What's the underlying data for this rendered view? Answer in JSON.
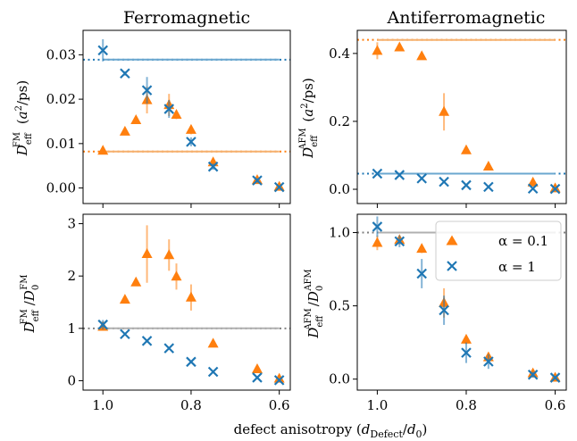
{
  "colors": {
    "orange": "#ff7f0e",
    "blue": "#1f77b4",
    "orange_fit": "#f5b06e",
    "blue_fit": "#6ba7cf",
    "gray_fit": "#b0b0b0",
    "gray_ref": "#808080"
  },
  "legend": {
    "alpha01": "α = 0.1",
    "alpha1": "α = 1"
  },
  "xlabel_shared": "defect anisotropy (d_Defect/d_0)",
  "chart_data": [
    {
      "type": "scatter",
      "title": "Ferromagnetic",
      "ylabel": "D_eff^FM (a²/ps)",
      "xlim": [
        1.045,
        0.575
      ],
      "ylim": [
        -0.0035,
        0.0355
      ],
      "xticks": [
        1.0,
        0.8,
        0.6
      ],
      "xtick_labels": [
        "1.0",
        "0.8",
        "0.6"
      ],
      "show_xtick_labels": false,
      "yticks": [
        0.0,
        0.01,
        0.02,
        0.03
      ],
      "ytick_labels": [
        "0.00",
        "0.01",
        "0.02",
        "0.03"
      ],
      "ref_lines": [
        {
          "y": 0.0289,
          "color": "blue"
        },
        {
          "y": 0.0082,
          "color": "orange"
        }
      ],
      "series": [
        {
          "name": "α = 0.1",
          "marker": "triangle",
          "color": "orange",
          "x": [
            1.0,
            0.95,
            0.925,
            0.9,
            0.85,
            0.8333,
            0.8,
            0.75,
            0.65,
            0.6
          ],
          "y": [
            0.0084,
            0.0127,
            0.0153,
            0.0198,
            0.0187,
            0.0165,
            0.0131,
            0.0058,
            0.0018,
            0.0003
          ],
          "err": [
            0.0003,
            0.0005,
            0.0005,
            0.003,
            0.0025,
            0.001,
            0.001,
            0.0005,
            0.0004,
            0.0002
          ]
        },
        {
          "name": "α = 1",
          "marker": "x",
          "color": "blue",
          "x": [
            1.0,
            0.95,
            0.9,
            0.85,
            0.8,
            0.75,
            0.65,
            0.6
          ],
          "y": [
            0.031,
            0.0258,
            0.022,
            0.0178,
            0.0104,
            0.0048,
            0.0017,
            0.0002
          ],
          "err": [
            0.0025,
            0.0005,
            0.003,
            0.002,
            0.001,
            0.0007,
            0.0005,
            0.0002
          ]
        }
      ],
      "fits": [
        {
          "color": "blue_fit",
          "top": 0.0289,
          "mid": 0.79,
          "width": 0.07
        },
        {
          "color": "orange_fit",
          "top": 0.0082,
          "mid": 0.79,
          "width": 0.07
        }
      ]
    },
    {
      "type": "scatter",
      "title": "Antiferromagnetic",
      "ylabel": "D_eff^AFM (a²/ps)",
      "xlim": [
        1.045,
        0.575
      ],
      "ylim": [
        -0.042,
        0.468
      ],
      "xticks": [
        1.0,
        0.8,
        0.6
      ],
      "xtick_labels": [
        "1.0",
        "0.8",
        "0.6"
      ],
      "show_xtick_labels": false,
      "yticks": [
        0.0,
        0.2,
        0.4
      ],
      "ytick_labels": [
        "0.0",
        "0.2",
        "0.4"
      ],
      "ref_lines": [
        {
          "y": 0.44,
          "color": "orange"
        },
        {
          "y": 0.046,
          "color": "blue"
        }
      ],
      "series": [
        {
          "name": "α = 0.1",
          "marker": "triangle",
          "color": "orange",
          "x": [
            1.0,
            0.95,
            0.9,
            0.85,
            0.8,
            0.75,
            0.65,
            0.6
          ],
          "y": [
            0.408,
            0.418,
            0.392,
            0.228,
            0.115,
            0.067,
            0.02,
            0.003
          ],
          "err": [
            0.025,
            0.01,
            0.01,
            0.055,
            0.01,
            0.008,
            0.005,
            0.003
          ]
        },
        {
          "name": "α = 1",
          "marker": "x",
          "color": "blue",
          "x": [
            1.0,
            0.95,
            0.9,
            0.85,
            0.8,
            0.75,
            0.65,
            0.6
          ],
          "y": [
            0.046,
            0.042,
            0.032,
            0.022,
            0.012,
            0.007,
            0.002,
            0.001
          ],
          "err": [
            0.004,
            0.003,
            0.003,
            0.003,
            0.002,
            0.002,
            0.001,
            0.001
          ]
        }
      ],
      "fits": [
        {
          "color": "orange_fit",
          "top": 0.44,
          "mid": 0.835,
          "width": 0.055
        },
        {
          "color": "blue_fit",
          "top": 0.046,
          "mid": 0.82,
          "width": 0.06
        }
      ]
    },
    {
      "type": "scatter",
      "ylabel": "D_eff^FM / D_0^FM",
      "xlim": [
        1.045,
        0.575
      ],
      "ylim": [
        -0.18,
        3.18
      ],
      "xticks": [
        1.0,
        0.8,
        0.6
      ],
      "xtick_labels": [
        "1.0",
        "0.8",
        "0.6"
      ],
      "show_xtick_labels": true,
      "yticks": [
        0,
        1,
        2,
        3
      ],
      "ytick_labels": [
        "0",
        "1",
        "2",
        "3"
      ],
      "ref_lines": [
        {
          "y": 1.0,
          "color": "gray_ref"
        }
      ],
      "series": [
        {
          "name": "α = 0.1",
          "marker": "triangle",
          "color": "orange",
          "x": [
            1.0,
            0.95,
            0.925,
            0.9,
            0.85,
            0.8333,
            0.8,
            0.75,
            0.65,
            0.6
          ],
          "y": [
            1.03,
            1.55,
            1.88,
            2.42,
            2.4,
            1.99,
            1.59,
            0.71,
            0.22,
            0.04
          ],
          "err": [
            0.04,
            0.06,
            0.06,
            0.55,
            0.3,
            0.25,
            0.25,
            0.05,
            0.04,
            0.03
          ]
        },
        {
          "name": "α = 1",
          "marker": "x",
          "color": "blue",
          "x": [
            1.0,
            0.95,
            0.9,
            0.85,
            0.8,
            0.75,
            0.65,
            0.6
          ],
          "y": [
            1.07,
            0.89,
            0.76,
            0.62,
            0.36,
            0.17,
            0.06,
            0.01
          ],
          "err": [
            0.09,
            0.03,
            0.03,
            0.03,
            0.03,
            0.03,
            0.02,
            0.01
          ]
        }
      ],
      "fits": [
        {
          "color": "gray_fit",
          "top": 1.0,
          "mid": 0.79,
          "width": 0.07
        }
      ]
    },
    {
      "type": "scatter",
      "ylabel": "D_eff^AFM / D_0^AFM",
      "xlim": [
        1.045,
        0.575
      ],
      "ylim": [
        -0.075,
        1.125
      ],
      "xticks": [
        1.0,
        0.8,
        0.6
      ],
      "xtick_labels": [
        "1.0",
        "0.8",
        "0.6"
      ],
      "show_xtick_labels": true,
      "yticks": [
        0.0,
        0.5,
        1.0
      ],
      "ytick_labels": [
        "0.0",
        "0.5",
        "1.0"
      ],
      "ref_lines": [
        {
          "y": 1.0,
          "color": "gray_ref"
        }
      ],
      "series": [
        {
          "name": "α = 0.1",
          "marker": "triangle",
          "color": "orange",
          "x": [
            1.0,
            0.95,
            0.9,
            0.85,
            0.8,
            0.75,
            0.65,
            0.6
          ],
          "y": [
            0.93,
            0.95,
            0.89,
            0.52,
            0.27,
            0.15,
            0.04,
            0.01
          ],
          "err": [
            0.05,
            0.03,
            0.03,
            0.1,
            0.03,
            0.03,
            0.02,
            0.01
          ]
        },
        {
          "name": "α = 1",
          "marker": "x",
          "color": "blue",
          "x": [
            1.0,
            0.95,
            0.9,
            0.85,
            0.8,
            0.75,
            0.65,
            0.6
          ],
          "y": [
            1.04,
            0.94,
            0.72,
            0.47,
            0.18,
            0.12,
            0.03,
            0.01
          ],
          "err": [
            0.07,
            0.04,
            0.1,
            0.1,
            0.07,
            0.05,
            0.02,
            0.01
          ]
        }
      ],
      "fits": [
        {
          "color": "gray_fit",
          "top": 1.0,
          "mid": 0.835,
          "width": 0.055
        }
      ],
      "legend_position": "upper-right"
    }
  ]
}
